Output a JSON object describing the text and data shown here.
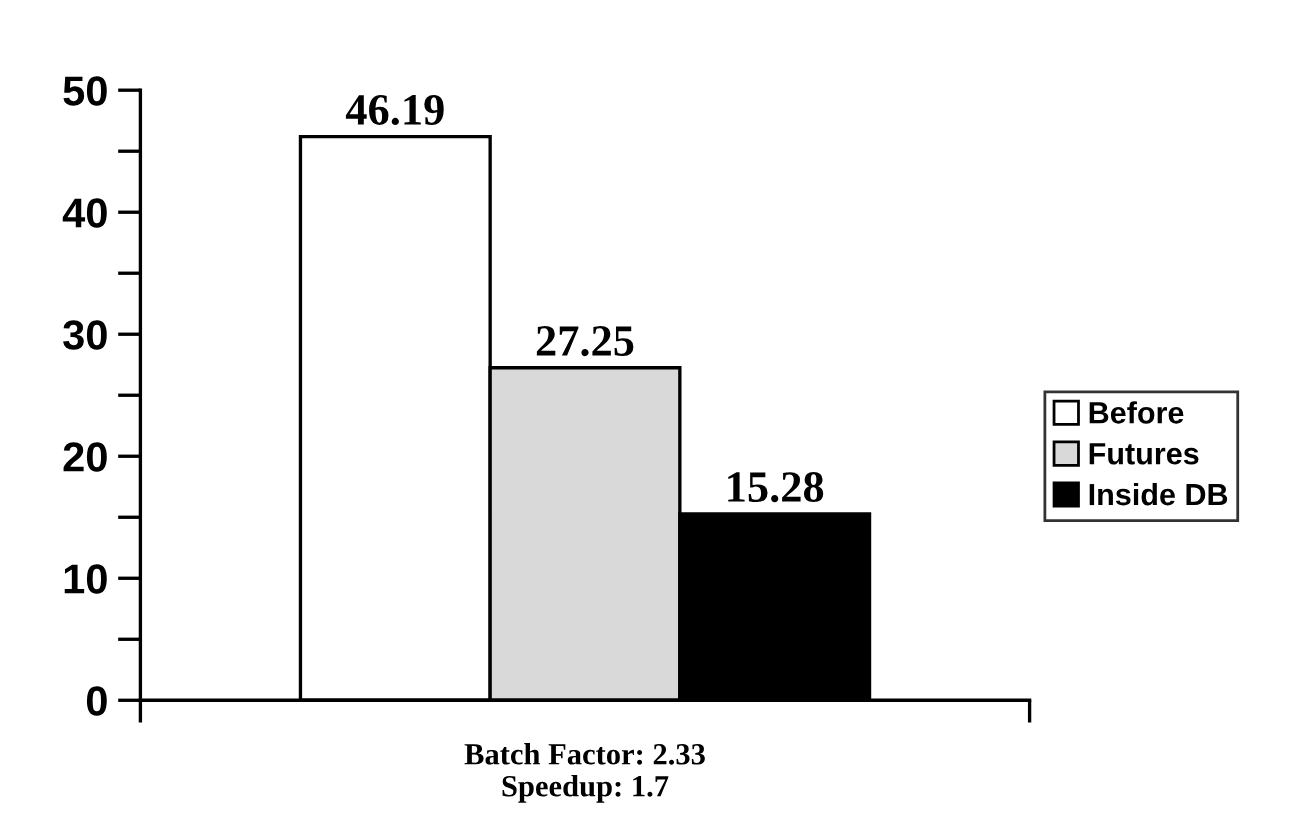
{
  "chart_data": {
    "type": "bar",
    "categories": [
      null
    ],
    "series": [
      {
        "name": "Before",
        "color": "#ffffff",
        "values": [
          46.19
        ]
      },
      {
        "name": "Futures",
        "color": "#d9d9d9",
        "values": [
          27.25
        ]
      },
      {
        "name": "Inside DB",
        "color": "#000000",
        "values": [
          15.28
        ]
      }
    ],
    "xlabel": "Batch Factor: 2.33\nSpeedup: 1.7",
    "ylim": [
      0,
      50
    ],
    "yticks": [
      0,
      {
        "value": 5,
        "label": null
      },
      10,
      {
        "value": 15,
        "label": null
      },
      20,
      {
        "value": 25,
        "label": null
      },
      30,
      {
        "value": 35,
        "label": null
      },
      40,
      {
        "value": 45,
        "label": null
      },
      50
    ],
    "data_labels": true,
    "legend": "right",
    "grid": false
  }
}
